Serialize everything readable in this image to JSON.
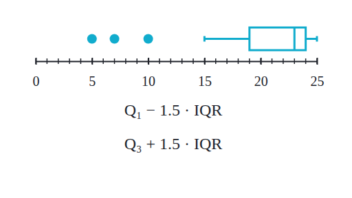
{
  "chart_data": {
    "type": "box",
    "whisker_low": 15,
    "q1": 19,
    "median": 23,
    "q3": 24,
    "whisker_high": 25,
    "outliers": [
      5,
      7,
      10
    ],
    "color": "#11accd",
    "xlim": [
      0,
      25
    ],
    "xticks": [
      0,
      5,
      10,
      15,
      20,
      25
    ],
    "annotations": [
      "Q₁ − 1.5 · IQR",
      "Q₃ + 1.5 · IQR"
    ]
  }
}
